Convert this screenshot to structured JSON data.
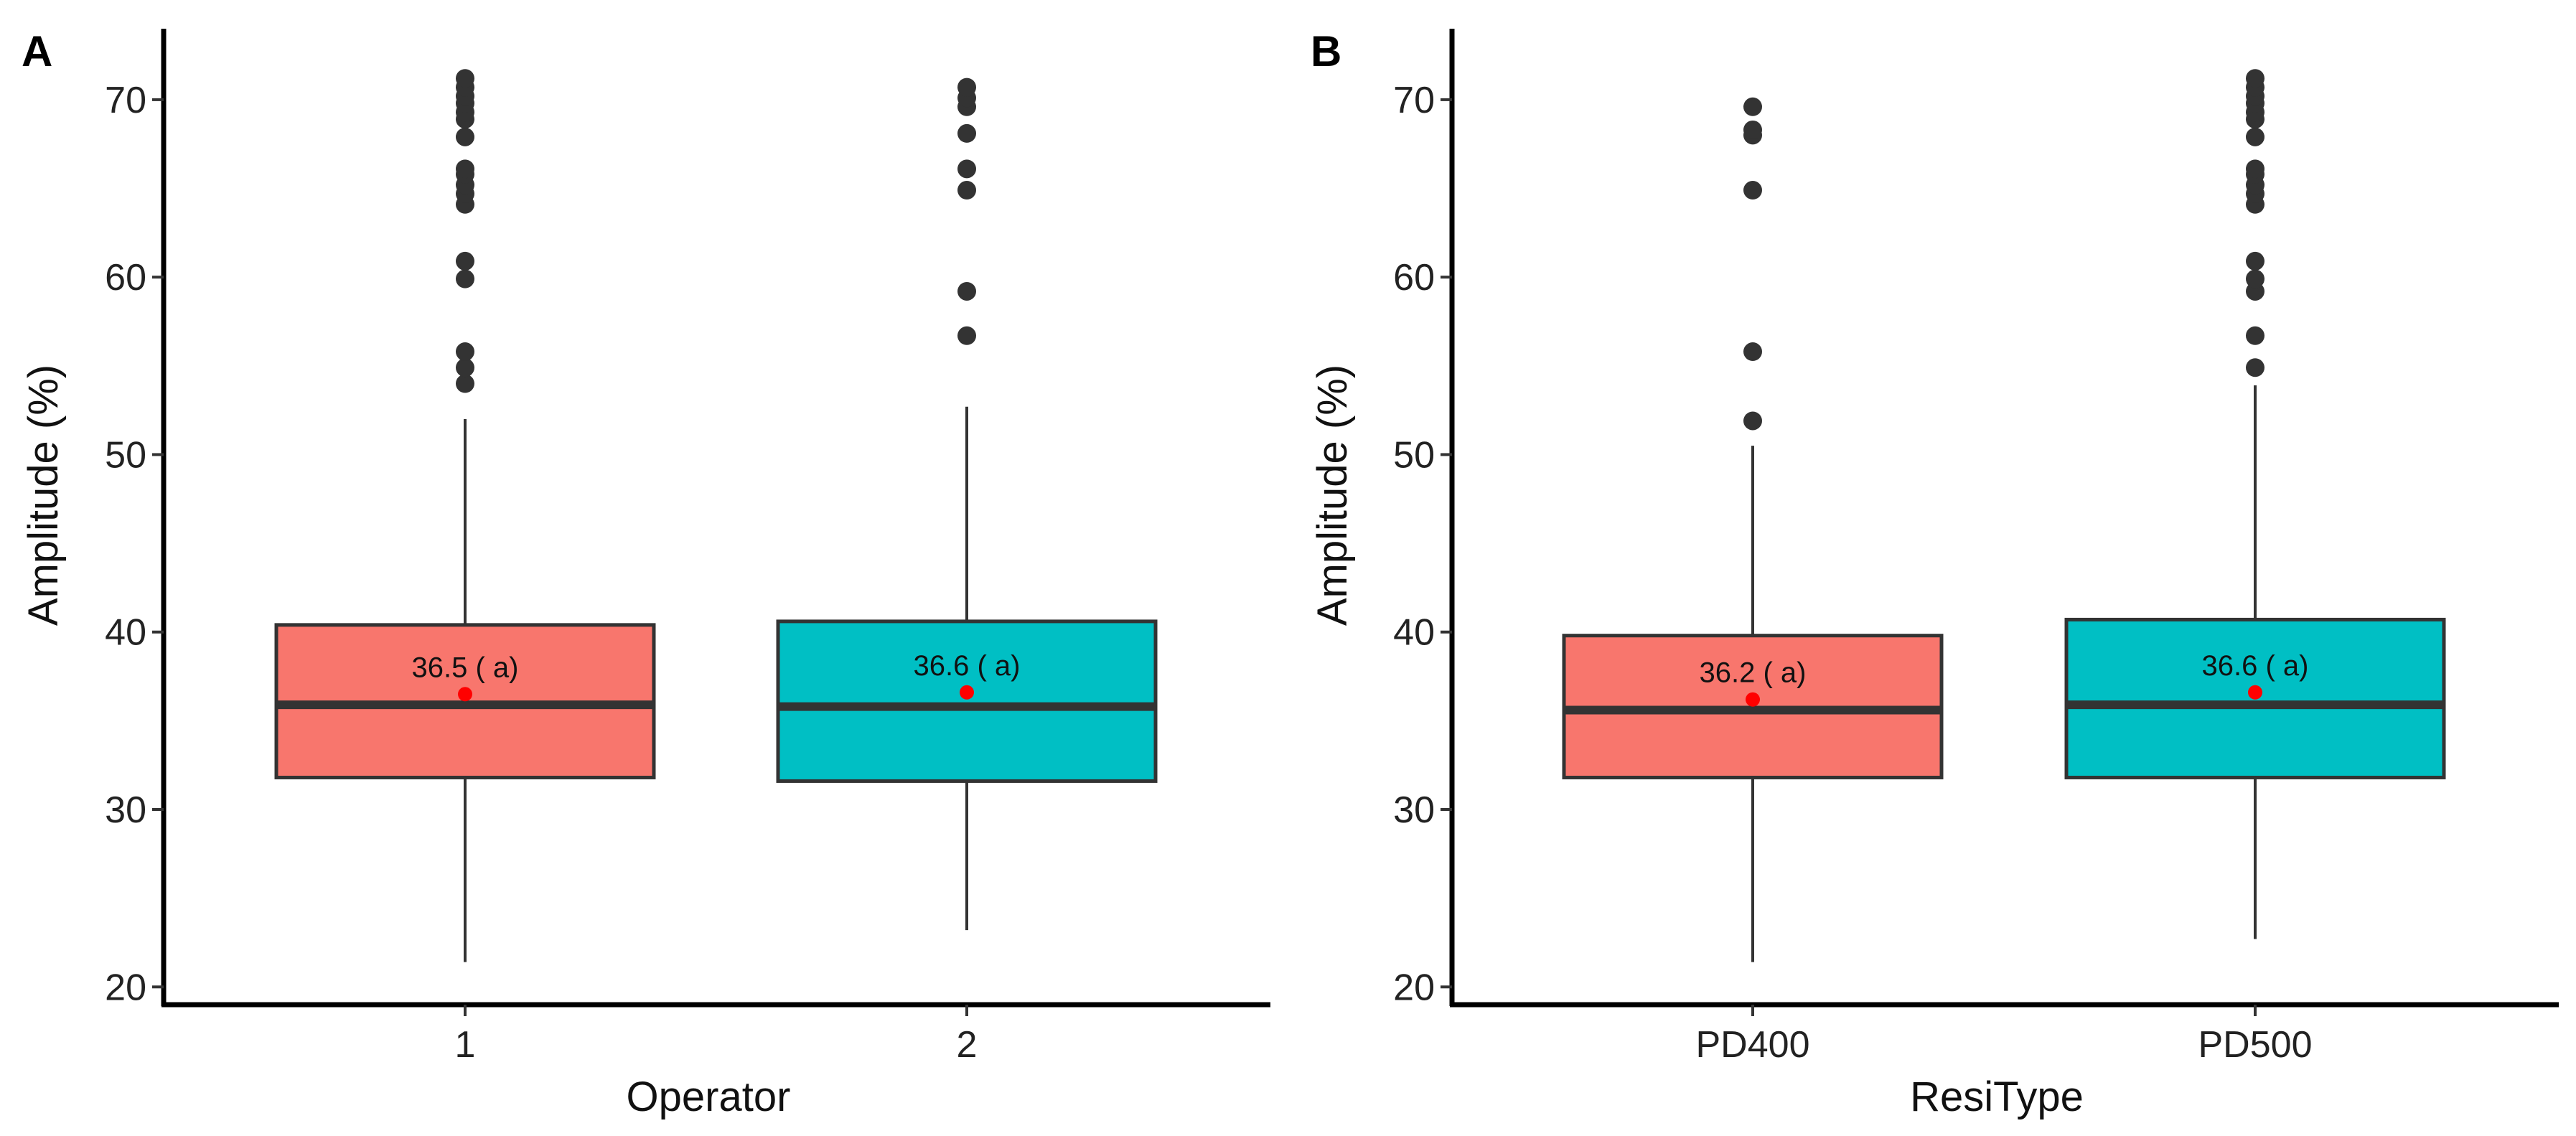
{
  "chart_data": [
    {
      "type": "boxplot",
      "panel_label": "A",
      "xlabel": "Operator",
      "ylabel": "Amplitude (%)",
      "ylim": [
        19,
        74
      ],
      "yticks": [
        "20",
        "30",
        "40",
        "50",
        "60",
        "70"
      ],
      "grid": false,
      "legend": "none",
      "categories": [
        "1",
        "2"
      ],
      "boxes": [
        {
          "category": "1",
          "color": "#F8766D",
          "whisker_low": 21.4,
          "q1": 31.8,
          "median": 35.9,
          "q3": 40.4,
          "whisker_high": 52.0,
          "mean": 36.5,
          "label": "36.5 ( a)",
          "outliers": [
            54.0,
            54.9,
            55.8,
            59.9,
            60.9,
            64.1,
            64.7,
            65.2,
            65.8,
            66.1,
            67.9,
            68.9,
            69.3,
            69.8,
            70.2,
            70.7,
            71.2
          ]
        },
        {
          "category": "2",
          "color": "#00BFC4",
          "whisker_low": 23.2,
          "q1": 31.6,
          "median": 35.8,
          "q3": 40.6,
          "whisker_high": 52.7,
          "mean": 36.6,
          "label": "36.6 ( a)",
          "outliers": [
            56.7,
            59.2,
            64.9,
            66.1,
            68.1,
            69.6,
            70.1,
            70.7
          ]
        }
      ]
    },
    {
      "type": "boxplot",
      "panel_label": "B",
      "xlabel": "ResiType",
      "ylabel": "Amplitude (%)",
      "ylim": [
        19,
        74
      ],
      "yticks": [
        "20",
        "30",
        "40",
        "50",
        "60",
        "70"
      ],
      "grid": false,
      "legend": "none",
      "categories": [
        "PD400",
        "PD500"
      ],
      "boxes": [
        {
          "category": "PD400",
          "color": "#F8766D",
          "whisker_low": 21.4,
          "q1": 31.8,
          "median": 35.6,
          "q3": 39.8,
          "whisker_high": 50.5,
          "mean": 36.2,
          "label": "36.2 ( a)",
          "outliers": [
            51.9,
            55.8,
            64.9,
            68.0,
            68.3,
            69.6
          ]
        },
        {
          "category": "PD500",
          "color": "#00BFC4",
          "whisker_low": 22.7,
          "q1": 31.8,
          "median": 35.9,
          "q3": 40.7,
          "whisker_high": 53.9,
          "mean": 36.6,
          "label": "36.6 ( a)",
          "outliers": [
            54.9,
            56.7,
            59.2,
            59.9,
            60.9,
            64.1,
            64.7,
            65.2,
            65.8,
            66.1,
            67.9,
            68.9,
            69.3,
            69.8,
            70.2,
            70.7,
            71.2
          ]
        }
      ]
    }
  ],
  "style": {
    "box_outline": "#333333",
    "outlier_color": "#333333",
    "mean_color": "#FF0000",
    "axis_color": "#000000"
  }
}
